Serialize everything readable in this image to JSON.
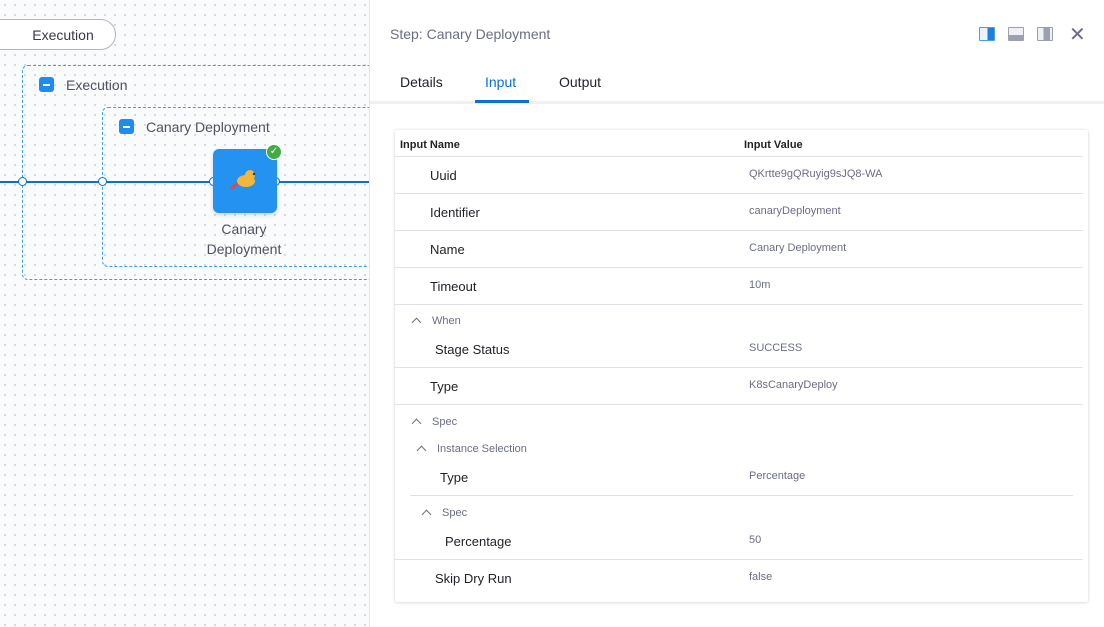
{
  "canvas": {
    "stage_pill": "Execution",
    "group_execution": "Execution",
    "group_step": "Canary Deployment",
    "step_label": "Canary Deployment",
    "step_status": "success"
  },
  "panel": {
    "title": "Step: Canary Deployment",
    "tabs": [
      {
        "label": "Details"
      },
      {
        "label": "Input",
        "active": true
      },
      {
        "label": "Output"
      }
    ],
    "table": {
      "col_name": "Input Name",
      "col_value": "Input Value",
      "rows": [
        {
          "name": "Uuid",
          "value": "QKrtte9gQRuyig9sJQ8-WA"
        },
        {
          "name": "Identifier",
          "value": "canaryDeployment"
        },
        {
          "name": "Name",
          "value": "Canary Deployment"
        },
        {
          "name": "Timeout",
          "value": "10m"
        },
        {
          "section": "When"
        },
        {
          "name": "Stage Status",
          "value": "SUCCESS"
        },
        {
          "name": "Type",
          "value": "K8sCanaryDeploy"
        },
        {
          "section": "Spec"
        },
        {
          "section": "Instance Selection"
        },
        {
          "name": "Type",
          "value": "Percentage"
        },
        {
          "section": "Spec"
        },
        {
          "name": "Percentage",
          "value": "50"
        },
        {
          "name": "Skip Dry Run",
          "value": "false"
        }
      ]
    }
  },
  "colors": {
    "accent": "#0b6fd3",
    "step": "#2492f0",
    "success": "#42ab45"
  }
}
